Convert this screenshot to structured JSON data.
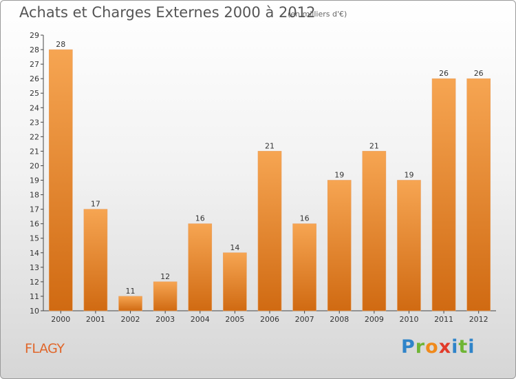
{
  "header": {
    "title": "Achats et Charges Externes 2000 à 2012",
    "subtitle": "(en milliers d'€)"
  },
  "footer": {
    "place": "FLAGY",
    "logo": [
      "P",
      "r",
      "o",
      "x",
      "i",
      "t",
      "i"
    ]
  },
  "chart_data": {
    "type": "bar",
    "title": "Achats et Charges Externes 2000 à 2012",
    "subtitle": "(en milliers d'€)",
    "xlabel": "",
    "ylabel": "",
    "categories": [
      "2000",
      "2001",
      "2002",
      "2003",
      "2004",
      "2005",
      "2006",
      "2007",
      "2008",
      "2009",
      "2010",
      "2011",
      "2012"
    ],
    "values": [
      28,
      17,
      11,
      12,
      16,
      14,
      21,
      16,
      19,
      21,
      19,
      26,
      26
    ],
    "ylim": [
      10,
      29
    ],
    "yticks": [
      10,
      11,
      12,
      13,
      14,
      15,
      16,
      17,
      18,
      19,
      20,
      21,
      22,
      23,
      24,
      25,
      26,
      27,
      28,
      29
    ],
    "grid": false,
    "bar_color": "#f0922e",
    "bar_color_dark": "#d4731a",
    "data_labels": true
  }
}
